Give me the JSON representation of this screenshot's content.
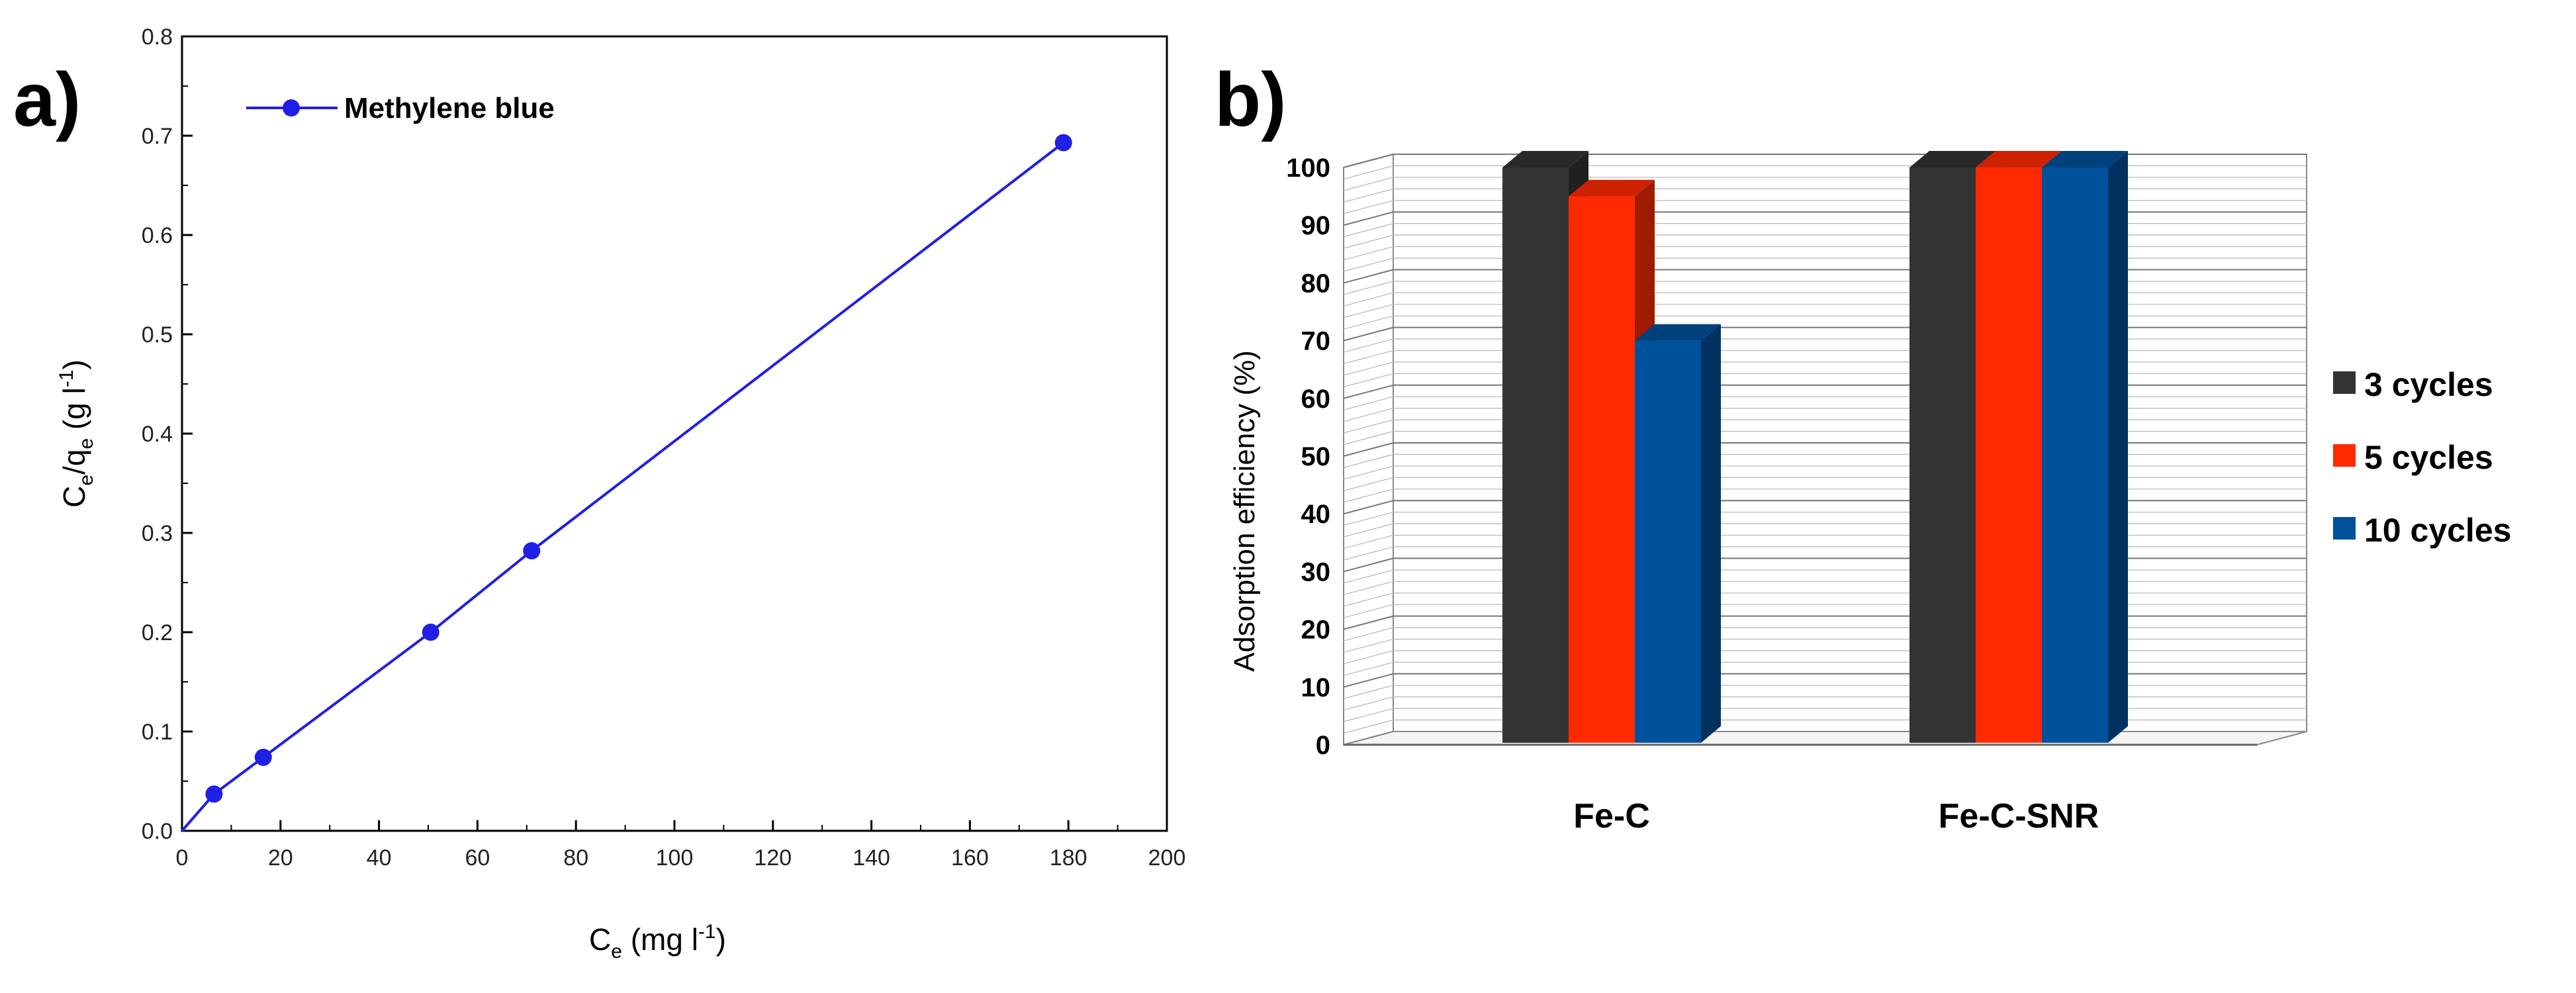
{
  "chart_data": [
    {
      "type": "line",
      "panel_label": "a)",
      "xlabel_main": "C",
      "xlabel_sub": "e",
      "xlabel_rest": " (mg l",
      "xlabel_sup": "-1",
      "xlabel_end": ")",
      "ylabel_main": "C",
      "ylabel_sub": "e",
      "ylabel_mid": "/q",
      "ylabel_sub2": "e",
      "ylabel_rest": " (g l",
      "ylabel_sup": "-1",
      "ylabel_end": ")",
      "xlim": [
        0,
        200
      ],
      "ylim": [
        0,
        0.8
      ],
      "xticks": [
        0,
        20,
        40,
        60,
        80,
        100,
        120,
        140,
        160,
        180,
        200
      ],
      "yticks": [
        0.0,
        0.1,
        0.2,
        0.3,
        0.4,
        0.5,
        0.6,
        0.7,
        0.8
      ],
      "ytick_labels": [
        "0.0",
        "0.1",
        "0.2",
        "0.3",
        "0.4",
        "0.5",
        "0.6",
        "0.7",
        "0.8"
      ],
      "legend_position": "top-left",
      "series": [
        {
          "name": "Methylene blue",
          "color": "#1f1fe6",
          "x": [
            0,
            6.5,
            16.5,
            50.5,
            71,
            179
          ],
          "y": [
            0.0,
            0.037,
            0.074,
            0.2,
            0.282,
            0.693
          ],
          "marker_x": [
            6.5,
            16.5,
            50.5,
            71,
            179
          ],
          "marker_y": [
            0.037,
            0.074,
            0.2,
            0.282,
            0.693
          ]
        }
      ]
    },
    {
      "type": "bar",
      "panel_label": "b)",
      "ylabel": "Adsorption efficiency (%)",
      "ylim": [
        0,
        100
      ],
      "yticks": [
        0,
        10,
        20,
        30,
        40,
        50,
        60,
        70,
        80,
        90,
        100
      ],
      "grid": true,
      "legend_position": "right",
      "categories": [
        "Fe-C",
        "Fe-C-SNR"
      ],
      "series": [
        {
          "name": "3 cycles",
          "color": "#333333",
          "values": [
            100,
            100
          ]
        },
        {
          "name": "5 cycles",
          "color": "#ff2a00",
          "values": [
            95,
            100
          ]
        },
        {
          "name": "10 cycles",
          "color": "#00519c",
          "values": [
            70,
            100
          ]
        }
      ]
    }
  ]
}
